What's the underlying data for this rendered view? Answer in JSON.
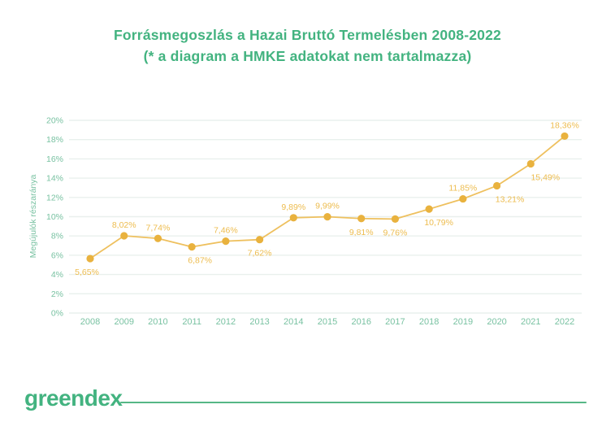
{
  "chart_data": {
    "type": "line",
    "title": "Forrásmegoszlás a Hazai Bruttó Termelésben 2008-2022",
    "subtitle": "(* a diagram a HMKE adatokat nem tartalmazza)",
    "ylabel": "Megújulók részaránya",
    "xlabel": "",
    "categories": [
      "2008",
      "2009",
      "2010",
      "2011",
      "2012",
      "2013",
      "2014",
      "2015",
      "2016",
      "2017",
      "2018",
      "2019",
      "2020",
      "2021",
      "2022"
    ],
    "values": [
      5.65,
      8.02,
      7.74,
      6.87,
      7.46,
      7.62,
      9.89,
      9.99,
      9.81,
      9.76,
      10.79,
      11.85,
      13.21,
      15.49,
      18.36
    ],
    "point_labels": [
      "5,65%",
      "8,02%",
      "7,74%",
      "6,87%",
      "7,46%",
      "7,62%",
      "9,89%",
      "9,99%",
      "9,81%",
      "9,76%",
      "10,79%",
      "11,85%",
      "13,21%",
      "15,49%",
      "18,36%"
    ],
    "label_positions": [
      "below",
      "above",
      "above",
      "below",
      "above",
      "below",
      "above",
      "above",
      "below",
      "below",
      "below",
      "above",
      "below",
      "below",
      "above"
    ],
    "label_dx": [
      -4,
      0,
      0,
      10,
      0,
      0,
      0,
      0,
      0,
      0,
      12,
      0,
      16,
      18,
      0
    ],
    "ylim": [
      0,
      20
    ],
    "yticks": [
      "0%",
      "2%",
      "4%",
      "6%",
      "8%",
      "10%",
      "12%",
      "14%",
      "16%",
      "18%",
      "20%"
    ],
    "grid": true,
    "legend": "none"
  },
  "footer": {
    "logo_text": "greendex"
  },
  "colors": {
    "brand_green": "#43b380",
    "axis_green": "#79c2a2",
    "line_yellow": "#eec05e",
    "marker_yellow": "#e9b23e",
    "label_yellow": "#edbc4e",
    "grid": "#e9f0ed",
    "divider_green": "#56b786"
  }
}
